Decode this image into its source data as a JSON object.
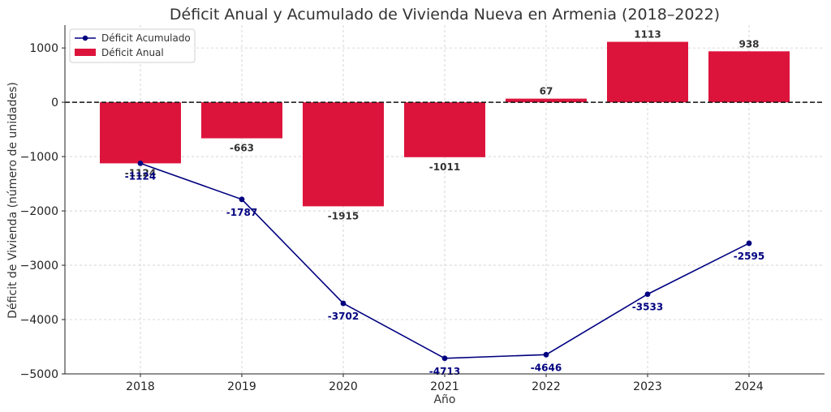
{
  "chart_data": {
    "type": "bar",
    "title": "Déficit Anual y Acumulado de Vivienda Nueva en Armenia (2018–2022)",
    "xlabel": "Año",
    "ylabel": "Déficit de Vivienda (número de unidades)",
    "categories": [
      "2018",
      "2019",
      "2020",
      "2021",
      "2022",
      "2023",
      "2024"
    ],
    "ylim": [
      -5000,
      1420
    ],
    "yticks": [
      1000,
      0,
      -1000,
      -2000,
      -3000,
      -4000,
      -5000
    ],
    "ytick_labels": [
      "1000",
      "0",
      "−1000",
      "−2000",
      "−3000",
      "−4000",
      "−5000"
    ],
    "grid": true,
    "legend_position": "top-left",
    "zero_line": true,
    "series": [
      {
        "name": "Déficit Anual",
        "type": "bar",
        "color": "#dc143c",
        "values": [
          -1124,
          -663,
          -1915,
          -1011,
          67,
          1113,
          938
        ],
        "labels": [
          "-1124",
          "-663",
          "-1915",
          "-1011",
          "67",
          "1113",
          "938"
        ]
      },
      {
        "name": "Déficit Acumulado",
        "type": "line",
        "color": "#000080",
        "values": [
          -1124,
          -1787,
          -3702,
          -4713,
          -4646,
          -3533,
          -2595
        ],
        "labels": [
          "-1124",
          "-1787",
          "-3702",
          "-4713",
          "-4646",
          "-3533",
          "-2595"
        ]
      }
    ]
  }
}
